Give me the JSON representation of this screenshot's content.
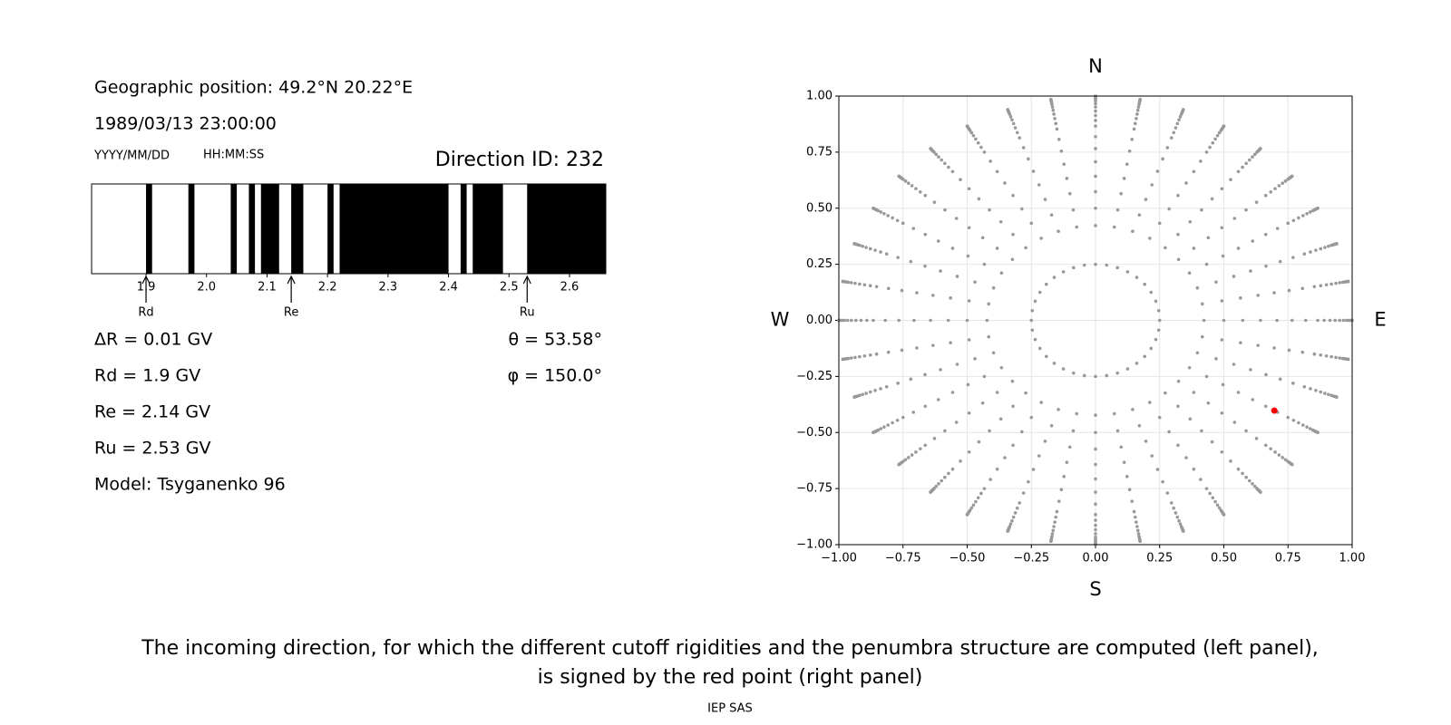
{
  "left": {
    "position": "Geographic position: 49.2°N 20.22°E",
    "datetime": "1989/03/13 23:00:00",
    "date_format": "YYYY/MM/DD",
    "time_format": "HH:MM:SS",
    "direction_id": "Direction ID: 232",
    "delta_r": "ΔR = 0.01 GV",
    "rd": "Rd = 1.9 GV",
    "re": "Re = 2.14 GV",
    "ru": "Ru = 2.53 GV",
    "model": "Model: Tsyganenko 96",
    "theta_label": "θ = 53.58°",
    "phi_label": "φ = 150.0°"
  },
  "chart_data": [
    {
      "type": "penumbra",
      "xlim": [
        1.81,
        2.66
      ],
      "xticks": [
        1.9,
        {
          "value": 2,
          "label": "2.0"
        },
        2.1,
        2.2,
        2.3,
        2.4,
        2.5,
        2.6
      ],
      "color": "#000000",
      "bands": {
        "start": [
          1.9,
          1.97,
          2.04,
          2.07,
          2.09,
          2.14,
          2.2,
          2.22,
          2.42,
          2.44,
          2.53
        ],
        "end": [
          1.91,
          1.98,
          2.05,
          2.08,
          2.12,
          2.16,
          2.21,
          2.4,
          2.43,
          2.49,
          2.66
        ]
      },
      "markers": {
        "labels": [
          "Rd",
          "Re",
          "Ru"
        ],
        "values": [
          1.9,
          2.14,
          2.53
        ]
      }
    },
    {
      "type": "scatter",
      "xlim": [
        -1,
        1
      ],
      "ylim": [
        -1,
        1
      ],
      "grid": true,
      "xticks": [
        {
          "value": -1,
          "label": "−1.00"
        },
        {
          "value": -0.75,
          "label": "−0.75"
        },
        {
          "value": -0.5,
          "label": "−0.50"
        },
        {
          "value": -0.25,
          "label": "−0.25"
        },
        {
          "value": 0,
          "label": "0.00"
        },
        {
          "value": 0.25,
          "label": "0.25"
        },
        {
          "value": 0.5,
          "label": "0.50"
        },
        {
          "value": 0.75,
          "label": "0.75"
        },
        {
          "value": 1,
          "label": "1.00"
        }
      ],
      "yticks": [
        {
          "value": -1,
          "label": "−1.00"
        },
        {
          "value": -0.75,
          "label": "−0.75"
        },
        {
          "value": -0.5,
          "label": "−0.50"
        },
        {
          "value": -0.25,
          "label": "−0.25"
        },
        {
          "value": 0,
          "label": "0.00"
        },
        {
          "value": 0.25,
          "label": "0.25"
        },
        {
          "value": 0.5,
          "label": "0.50"
        },
        {
          "value": 0.75,
          "label": "0.75"
        },
        {
          "value": 1,
          "label": "1.00"
        }
      ],
      "compass": {
        "north": "N",
        "south": "S",
        "west": "W",
        "east": "E"
      },
      "grid_points": {
        "color": "#999999",
        "theta": [
          14.48,
          25,
          30,
          35,
          40,
          45,
          50,
          55,
          60,
          63,
          66,
          69,
          72,
          75,
          78,
          80,
          82,
          84,
          86,
          88,
          90
        ],
        "phi": [
          0,
          10,
          20,
          30,
          40,
          50,
          60,
          70,
          80,
          90,
          100,
          110,
          120,
          130,
          140,
          150,
          160,
          170,
          180,
          190,
          200,
          210,
          220,
          230,
          240,
          250,
          260,
          270,
          280,
          290,
          300,
          310,
          320,
          330,
          340,
          350
        ]
      },
      "highlight": {
        "theta": 53.58,
        "phi": 150,
        "color": "#ff0000"
      }
    }
  ],
  "caption": [
    "The incoming direction, for which the different cutoff rigidities and the penumbra structure are computed (left panel),",
    "is signed by the red point (right panel)"
  ],
  "footer": "IEP SAS"
}
